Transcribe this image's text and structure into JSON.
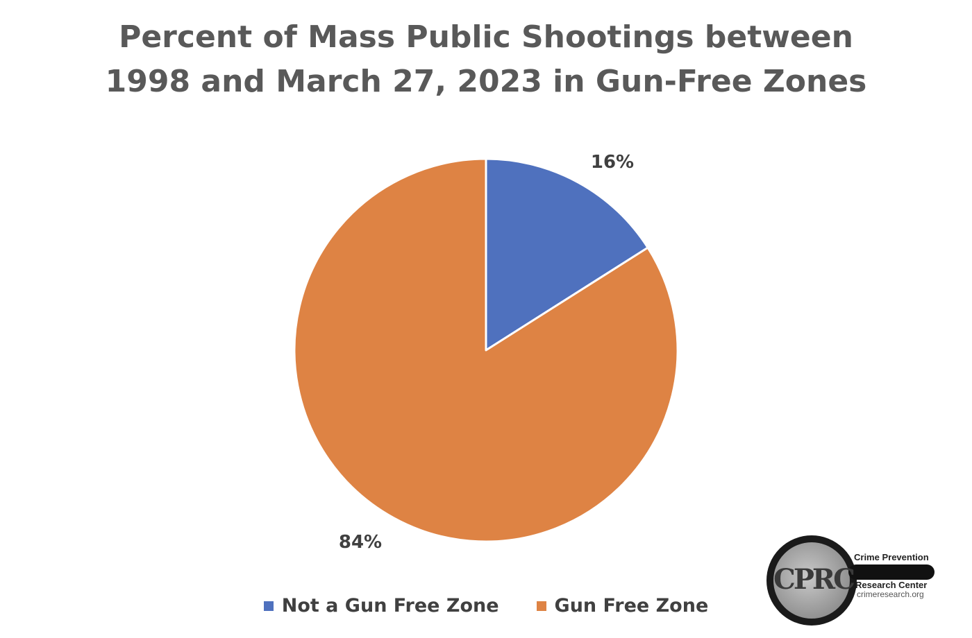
{
  "chart_data": {
    "type": "pie",
    "title_lines": [
      "Percent of Mass Public Shootings between",
      "1998 and March 27, 2023 in Gun-Free Zones"
    ],
    "categories": [
      "Not a Gun Free Zone",
      "Gun Free Zone"
    ],
    "values": [
      16,
      84
    ],
    "data_labels": [
      "16%",
      "84%"
    ],
    "colors": [
      "#4f71be",
      "#de8344"
    ],
    "legend_position": "bottom",
    "start_angle": "top, clockwise"
  },
  "logo": {
    "mark": "CPRC",
    "line1": "Crime Prevention",
    "line2": "Research Center",
    "line3": "crimeresearch.org"
  },
  "icons": {
    "logo": "magnifying-glass-logo-icon"
  }
}
